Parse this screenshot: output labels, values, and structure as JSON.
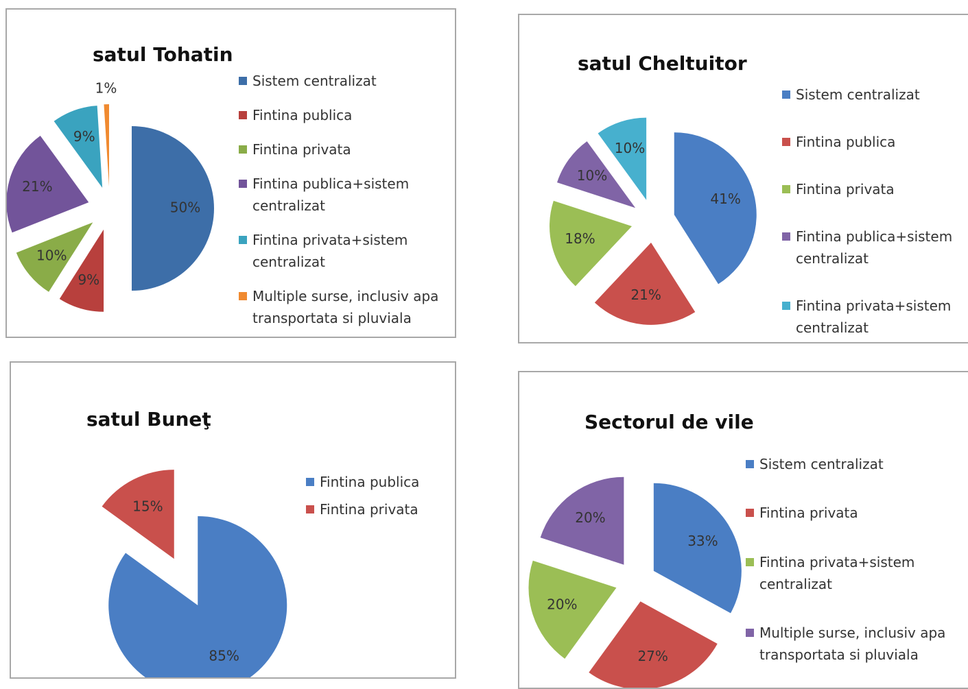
{
  "chart_data": [
    {
      "type": "pie",
      "title": "satul Tohatin",
      "categories": [
        "Sistem centralizat",
        "Fintina publica",
        "Fintina privata",
        "Fintina publica+sistem centralizat",
        "Fintina privata+sistem centralizat",
        "Multiple surse, inclusiv apa transportata si pluviala"
      ],
      "values": [
        50,
        9,
        10,
        21,
        9,
        1
      ],
      "value_labels": [
        "50%",
        "9%",
        "10%",
        "21%",
        "9%",
        "1%"
      ],
      "colors": [
        "#3d6ea8",
        "#b8403d",
        "#8aac48",
        "#72549a",
        "#3aa3bf",
        "#f08a30"
      ]
    },
    {
      "type": "pie",
      "title": "satul Cheltuitor",
      "categories": [
        "Sistem centralizat",
        "Fintina publica",
        "Fintina privata",
        "Fintina publica+sistem centralizat",
        "Fintina privata+sistem centralizat"
      ],
      "values": [
        41,
        21,
        18,
        10,
        10
      ],
      "value_labels": [
        "41%",
        "21%",
        "18%",
        "10%",
        "10%"
      ],
      "colors": [
        "#4a7ec4",
        "#c9504c",
        "#9bbe55",
        "#8064a6",
        "#47b0ce"
      ]
    },
    {
      "type": "pie",
      "title": "satul Buneţ",
      "categories": [
        "Fintina publica",
        "Fintina privata"
      ],
      "values": [
        85,
        15
      ],
      "value_labels": [
        "85%",
        "15%"
      ],
      "colors": [
        "#4a7ec4",
        "#c9504c"
      ]
    },
    {
      "type": "pie",
      "title": "Sectorul de vile",
      "categories": [
        "Sistem centralizat",
        "Fintina privata",
        "Fintina privata+sistem centralizat",
        "Multiple surse, inclusiv apa transportata si pluviala"
      ],
      "values": [
        33,
        27,
        20,
        20
      ],
      "value_labels": [
        "33%",
        "27%",
        "20%",
        "20%"
      ],
      "colors": [
        "#4a7ec4",
        "#c9504c",
        "#9bbe55",
        "#8064a6"
      ]
    }
  ]
}
